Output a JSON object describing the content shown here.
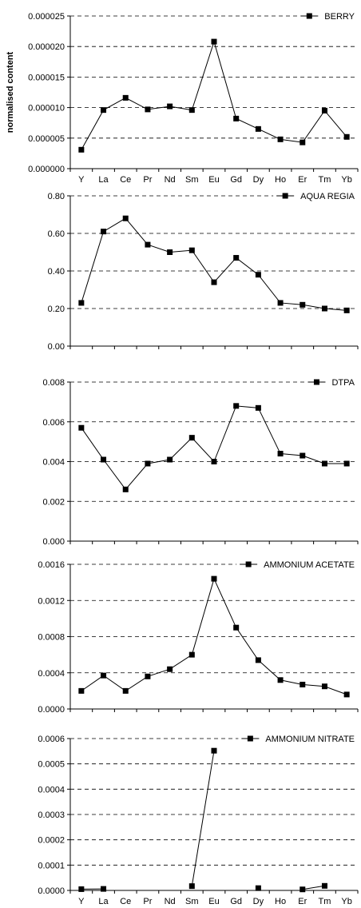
{
  "chart_data": [
    {
      "type": "line",
      "title": "",
      "ylabel": "normalised content",
      "xlabel": "",
      "categories": [
        "Y",
        "La",
        "Ce",
        "Pr",
        "Nd",
        "Sm",
        "Eu",
        "Gd",
        "Dy",
        "Ho",
        "Er",
        "Tm",
        "Yb"
      ],
      "show_category_labels": true,
      "ylim": [
        0,
        2.5e-05
      ],
      "yticks": [
        "0.000000",
        "0.000005",
        "0.000010",
        "0.000015",
        "0.000020",
        "0.000025"
      ],
      "grid": "dashed horizontal",
      "legend": "top-right",
      "series": [
        {
          "name": "BERRY",
          "values": [
            3.1e-06,
            9.6e-06,
            1.16e-05,
            9.7e-06,
            1.02e-05,
            9.6e-06,
            2.08e-05,
            8.2e-06,
            6.5e-06,
            4.8e-06,
            4.3e-06,
            9.5e-06,
            5.2e-06
          ]
        }
      ]
    },
    {
      "type": "line",
      "title": "",
      "ylabel": "",
      "xlabel": "",
      "categories": [
        "Y",
        "La",
        "Ce",
        "Pr",
        "Nd",
        "Sm",
        "Eu",
        "Gd",
        "Dy",
        "Ho",
        "Er",
        "Tm",
        "Yb"
      ],
      "show_category_labels": false,
      "ylim": [
        0,
        0.8
      ],
      "yticks": [
        "0.00",
        "0.20",
        "0.40",
        "0.60",
        "0.80"
      ],
      "grid": "dashed horizontal",
      "legend": "top-right",
      "series": [
        {
          "name": "AQUA REGIA",
          "values": [
            0.23,
            0.61,
            0.68,
            0.54,
            0.5,
            0.51,
            0.34,
            0.47,
            0.38,
            0.23,
            0.22,
            0.2,
            0.19
          ]
        }
      ]
    },
    {
      "type": "line",
      "title": "",
      "ylabel": "",
      "xlabel": "",
      "categories": [
        "Y",
        "La",
        "Ce",
        "Pr",
        "Nd",
        "Sm",
        "Eu",
        "Gd",
        "Dy",
        "Ho",
        "Er",
        "Tm",
        "Yb"
      ],
      "show_category_labels": false,
      "ylim": [
        0,
        0.008
      ],
      "yticks": [
        "0.000",
        "0.002",
        "0.004",
        "0.006",
        "0.008"
      ],
      "grid": "dashed horizontal",
      "legend": "top-right",
      "series": [
        {
          "name": "DTPA",
          "values": [
            0.0057,
            0.0041,
            0.0026,
            0.0039,
            0.0041,
            0.0052,
            0.004,
            0.0068,
            0.0067,
            0.0044,
            0.0043,
            0.0039,
            0.0039
          ]
        }
      ]
    },
    {
      "type": "line",
      "title": "",
      "ylabel": "",
      "xlabel": "",
      "categories": [
        "Y",
        "La",
        "Ce",
        "Pr",
        "Nd",
        "Sm",
        "Eu",
        "Gd",
        "Dy",
        "Ho",
        "Er",
        "Tm",
        "Yb"
      ],
      "show_category_labels": false,
      "ylim": [
        0,
        0.0016
      ],
      "yticks": [
        "0.0000",
        "0.0004",
        "0.0008",
        "0.0012",
        "0.0016"
      ],
      "grid": "dashed horizontal",
      "legend": "top-right",
      "series": [
        {
          "name": "AMMONIUM ACETATE",
          "values": [
            0.0002,
            0.00037,
            0.0002,
            0.00036,
            0.00044,
            0.0006,
            0.00144,
            0.0009,
            0.00054,
            0.00032,
            0.00027,
            0.00025,
            0.00016
          ]
        }
      ]
    },
    {
      "type": "line",
      "title": "",
      "ylabel": "",
      "xlabel": "",
      "categories": [
        "Y",
        "La",
        "Ce",
        "Pr",
        "Nd",
        "Sm",
        "Eu",
        "Gd",
        "Dy",
        "Ho",
        "Er",
        "Tm",
        "Yb"
      ],
      "show_category_labels": true,
      "ylim": [
        0,
        0.0006
      ],
      "yticks": [
        "0.0000",
        "0.0001",
        "0.0002",
        "0.0003",
        "0.0004",
        "0.0005",
        "0.0006"
      ],
      "grid": "dashed horizontal",
      "legend": "top-right",
      "series": [
        {
          "name": "AMMONIUM NITRATE",
          "values": [
            5e-06,
            6e-06,
            null,
            null,
            null,
            1.7e-05,
            0.000552,
            null,
            9e-06,
            null,
            4e-06,
            1.8e-05,
            null
          ]
        }
      ]
    }
  ]
}
